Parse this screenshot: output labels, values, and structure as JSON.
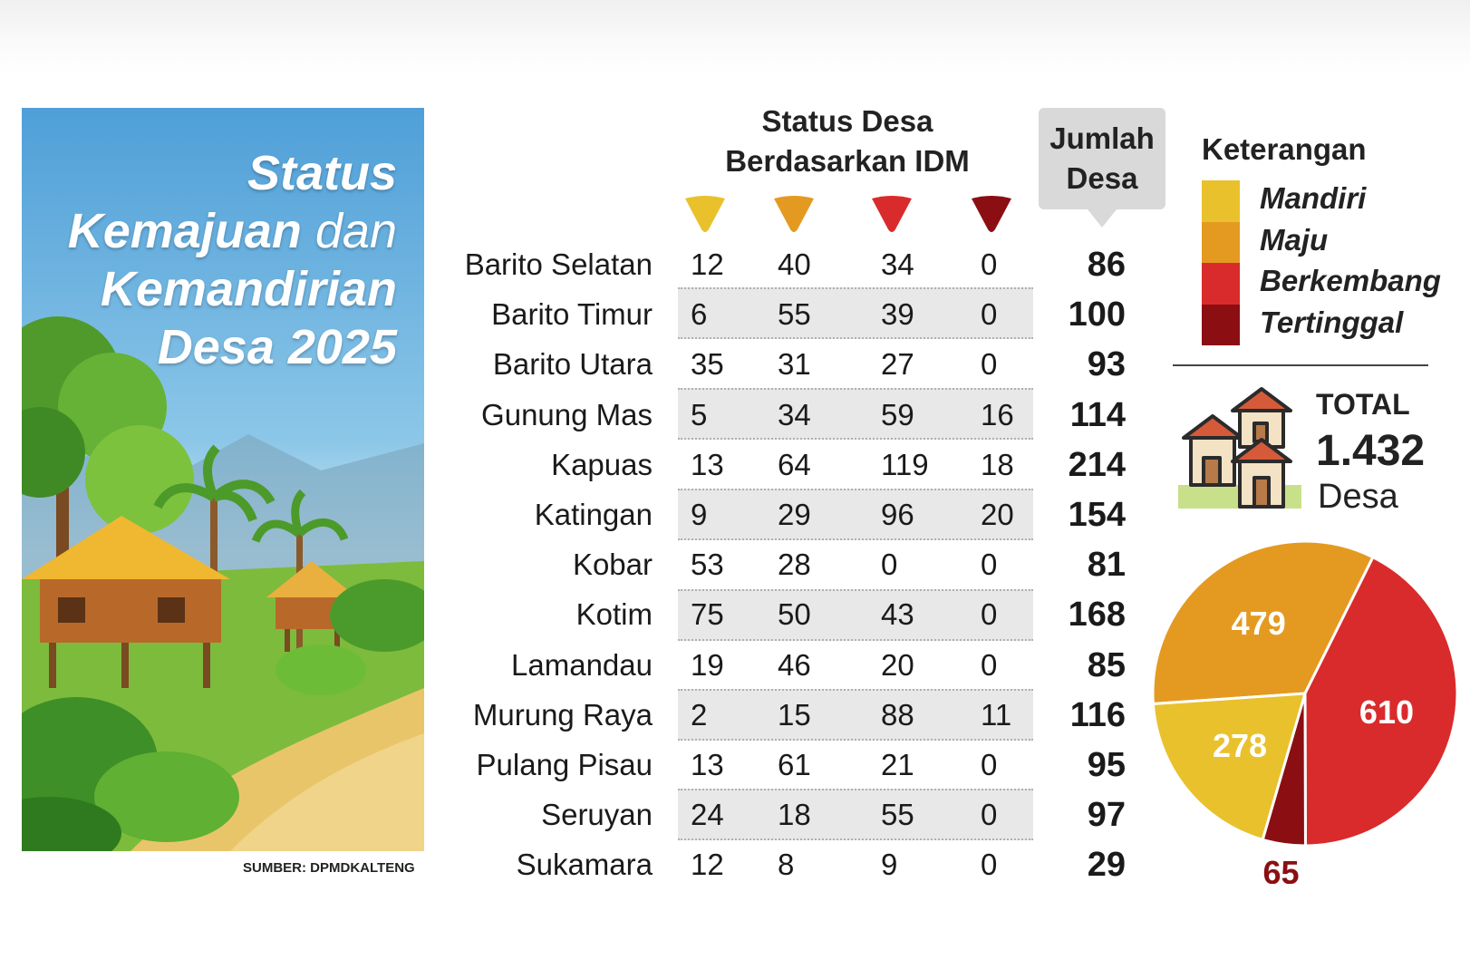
{
  "panel": {
    "title_line1": "Status",
    "title_line2a": "Kemajuan",
    "title_line2b": "dan",
    "title_line3": "Kemandirian",
    "title_line4": "Desa 2025"
  },
  "source": "SUMBER: DPMDKALTENG",
  "header": {
    "status_line1": "Status Desa",
    "status_line2": "Berdasarkan IDM",
    "jumlah_line1": "Jumlah",
    "jumlah_line2": "Desa"
  },
  "legend": {
    "title": "Keterangan",
    "items": [
      {
        "label": "Mandiri",
        "color": "#e9c12c"
      },
      {
        "label": "Maju",
        "color": "#e49a21"
      },
      {
        "label": "Berkembang",
        "color": "#d92b2b"
      },
      {
        "label": "Tertinggal",
        "color": "#8b0e13"
      }
    ]
  },
  "total": {
    "label": "TOTAL",
    "value": "1.432",
    "unit": "Desa"
  },
  "chart_data": [
    {
      "type": "table",
      "columns": [
        "Mandiri",
        "Maju",
        "Berkembang",
        "Tertinggal",
        "Jumlah Desa"
      ],
      "rows": [
        {
          "region": "Barito Selatan",
          "values": [
            12,
            40,
            34,
            0
          ],
          "total": 86
        },
        {
          "region": "Barito Timur",
          "values": [
            6,
            55,
            39,
            0
          ],
          "total": 100
        },
        {
          "region": "Barito Utara",
          "values": [
            35,
            31,
            27,
            0
          ],
          "total": 93
        },
        {
          "region": "Gunung Mas",
          "values": [
            5,
            34,
            59,
            16
          ],
          "total": 114
        },
        {
          "region": "Kapuas",
          "values": [
            13,
            64,
            119,
            18
          ],
          "total": 214
        },
        {
          "region": "Katingan",
          "values": [
            9,
            29,
            96,
            20
          ],
          "total": 154
        },
        {
          "region": "Kobar",
          "values": [
            53,
            28,
            0,
            0
          ],
          "total": 81
        },
        {
          "region": "Kotim",
          "values": [
            75,
            50,
            43,
            0
          ],
          "total": 168
        },
        {
          "region": "Lamandau",
          "values": [
            19,
            46,
            20,
            0
          ],
          "total": 85
        },
        {
          "region": "Murung Raya",
          "values": [
            2,
            15,
            88,
            11
          ],
          "total": 116
        },
        {
          "region": "Pulang Pisau",
          "values": [
            13,
            61,
            21,
            0
          ],
          "total": 95
        },
        {
          "region": "Seruyan",
          "values": [
            24,
            18,
            55,
            0
          ],
          "total": 97
        },
        {
          "region": "Sukamara",
          "values": [
            12,
            8,
            9,
            0
          ],
          "total": 29
        }
      ]
    },
    {
      "type": "pie",
      "slices": [
        {
          "label": "Mandiri",
          "value": 278,
          "color": "#e9c12c"
        },
        {
          "label": "Maju",
          "value": 479,
          "color": "#e49a21"
        },
        {
          "label": "Berkembang",
          "value": 610,
          "color": "#d92b2b"
        },
        {
          "label": "Tertinggal",
          "value": 65,
          "color": "#8b0e13"
        }
      ]
    }
  ]
}
